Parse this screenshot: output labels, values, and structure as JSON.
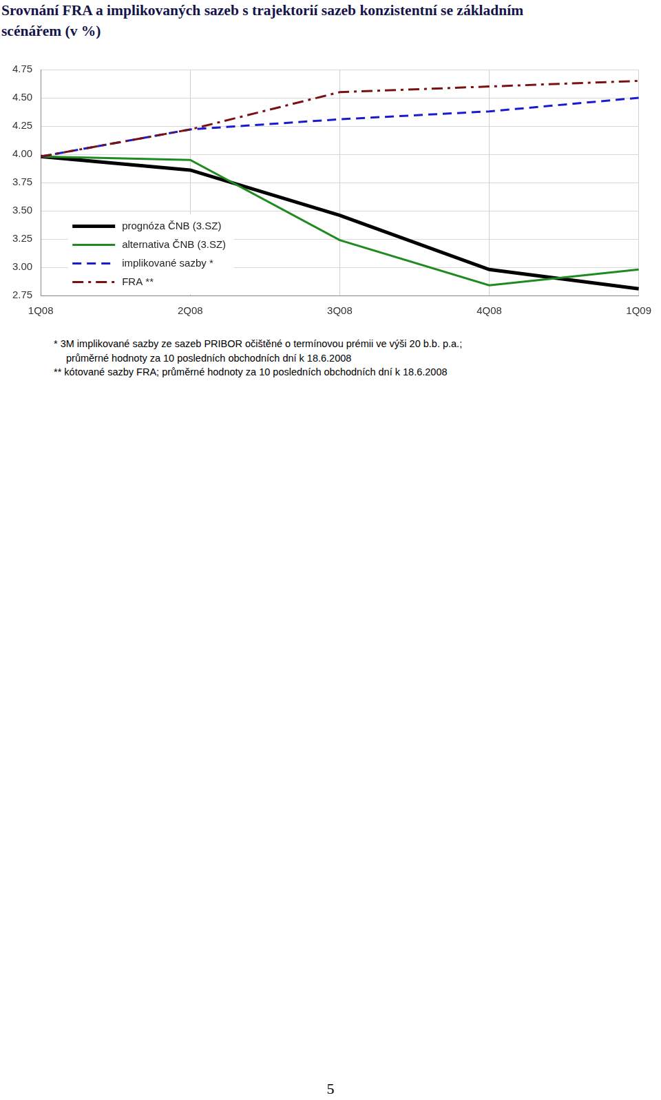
{
  "chart_data": {
    "type": "line",
    "title": [
      "Srovnání FRA a implikovaných sazeb s trajektorií sazeb konzistentní se základním",
      "scénářem (v %)"
    ],
    "categories": [
      "1Q08",
      "2Q08",
      "3Q08",
      "4Q08",
      "1Q09"
    ],
    "series": [
      {
        "name": "prognóza ČNB (3.SZ)",
        "color": "#000000",
        "line_style": "solid",
        "values": [
          3.98,
          3.86,
          3.46,
          2.98,
          2.81
        ]
      },
      {
        "name": "alternativa ČNB (3.SZ)",
        "color": "#1f8a1f",
        "line_style": "solid",
        "values": [
          3.98,
          3.95,
          3.24,
          2.84,
          2.98
        ]
      },
      {
        "name": "implikované sazby *",
        "color": "#1a1ad0",
        "line_style": "dashed",
        "values": [
          3.98,
          4.22,
          4.31,
          4.38,
          4.5
        ]
      },
      {
        "name": "FRA **",
        "color": "#7a1010",
        "line_style": "dashdot",
        "values": [
          3.98,
          4.22,
          4.55,
          4.6,
          4.65
        ]
      }
    ],
    "ylim": [
      2.75,
      4.75
    ],
    "yticks": [
      2.75,
      {
        "value": 3,
        "label": "3.00"
      },
      3.25,
      {
        "value": 3.5,
        "label": "3.50"
      },
      3.75,
      {
        "value": 4,
        "label": "4.00"
      },
      4.25,
      {
        "value": 4.5,
        "label": "4.50"
      },
      4.75
    ],
    "grid": true,
    "legend": "lower left",
    "notes": [
      [
        "* 3M implikované sazby ze sazeb PRIBOR očištěné o termínovou prémii ve výši 20 b.b. p.a.;",
        "průměrné hodnoty za 10 posledních obchodních dní k 18.6.2008"
      ],
      [
        "** kótované sazby FRA; průměrné hodnoty za 10 posledních obchodních dní k 18.6.2008"
      ]
    ],
    "page_number": "5"
  }
}
